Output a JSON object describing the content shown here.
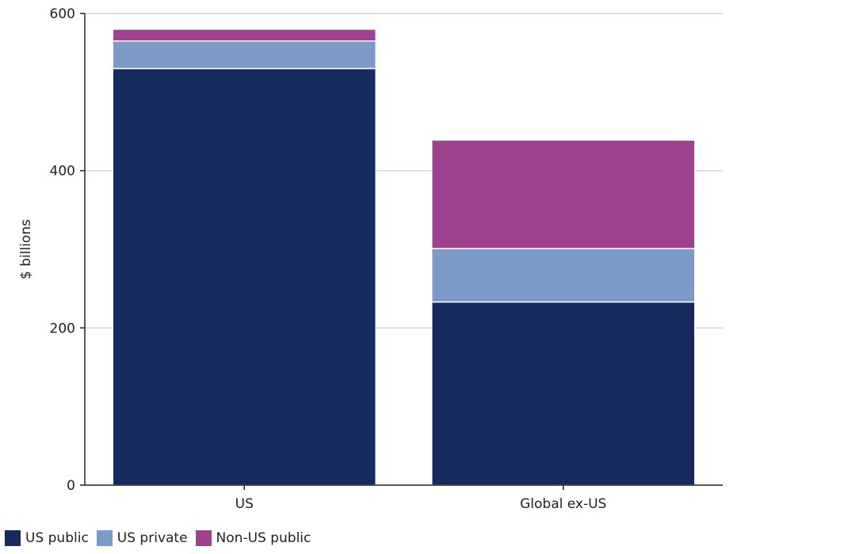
{
  "chart_data": {
    "type": "bar",
    "stacked": true,
    "categories": [
      "US",
      "Global ex-US"
    ],
    "series": [
      {
        "name": "US public",
        "values": [
          530,
          233
        ],
        "color": "#162a5e"
      },
      {
        "name": "US private",
        "values": [
          35,
          68
        ],
        "color": "#7b9ac8"
      },
      {
        "name": "Non-US public",
        "values": [
          15,
          138
        ],
        "color": "#9e428f"
      }
    ],
    "ylabel": "$ billions",
    "ylim": [
      0,
      600
    ],
    "yticks": [
      0,
      200,
      400,
      600
    ],
    "grid": true,
    "legend": "bottom-left"
  }
}
